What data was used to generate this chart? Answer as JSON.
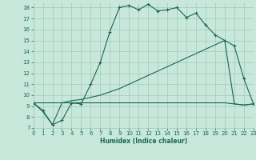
{
  "xlabel": "Humidex (Indice chaleur)",
  "xlim": [
    0,
    23
  ],
  "ylim": [
    7,
    18.4
  ],
  "yticks": [
    7,
    8,
    9,
    10,
    11,
    12,
    13,
    14,
    15,
    16,
    17,
    18
  ],
  "xticks": [
    0,
    1,
    2,
    3,
    4,
    5,
    6,
    7,
    8,
    9,
    10,
    11,
    12,
    13,
    14,
    15,
    16,
    17,
    18,
    19,
    20,
    21,
    22,
    23
  ],
  "bg_color": "#c8e8dc",
  "grid_color": "#a0c8b8",
  "line_color": "#1a6655",
  "curve_main_x": [
    0,
    1,
    2,
    3,
    4,
    5,
    6,
    7,
    8,
    9,
    10,
    11,
    12,
    13,
    14,
    15,
    16,
    17,
    18,
    19,
    20,
    21,
    22,
    23
  ],
  "curve_main_y": [
    9.3,
    8.6,
    7.3,
    7.7,
    9.3,
    9.2,
    11.0,
    13.0,
    15.8,
    18.0,
    18.2,
    17.8,
    18.3,
    17.7,
    17.8,
    18.0,
    17.1,
    17.5,
    16.4,
    15.5,
    15.0,
    14.5,
    11.5,
    9.2
  ],
  "curve_flat_x": [
    0,
    1,
    2,
    3,
    4,
    5,
    6,
    7,
    8,
    9,
    10,
    11,
    12,
    13,
    14,
    15,
    16,
    17,
    18,
    19,
    20,
    21,
    22,
    23
  ],
  "curve_flat_y": [
    9.3,
    8.5,
    7.3,
    9.3,
    9.3,
    9.3,
    9.3,
    9.3,
    9.3,
    9.3,
    9.3,
    9.3,
    9.3,
    9.3,
    9.3,
    9.3,
    9.3,
    9.3,
    9.3,
    9.3,
    9.3,
    9.2,
    9.1,
    9.2
  ],
  "curve_diag_x": [
    0,
    1,
    2,
    3,
    4,
    5,
    6,
    7,
    8,
    9,
    10,
    11,
    12,
    13,
    14,
    15,
    16,
    17,
    18,
    19,
    20,
    21,
    22,
    23
  ],
  "curve_diag_y": [
    9.3,
    9.3,
    9.3,
    9.3,
    9.5,
    9.6,
    9.8,
    10.0,
    10.3,
    10.6,
    11.0,
    11.4,
    11.8,
    12.2,
    12.6,
    13.0,
    13.4,
    13.8,
    14.2,
    14.6,
    15.0,
    9.2,
    9.1,
    9.2
  ]
}
